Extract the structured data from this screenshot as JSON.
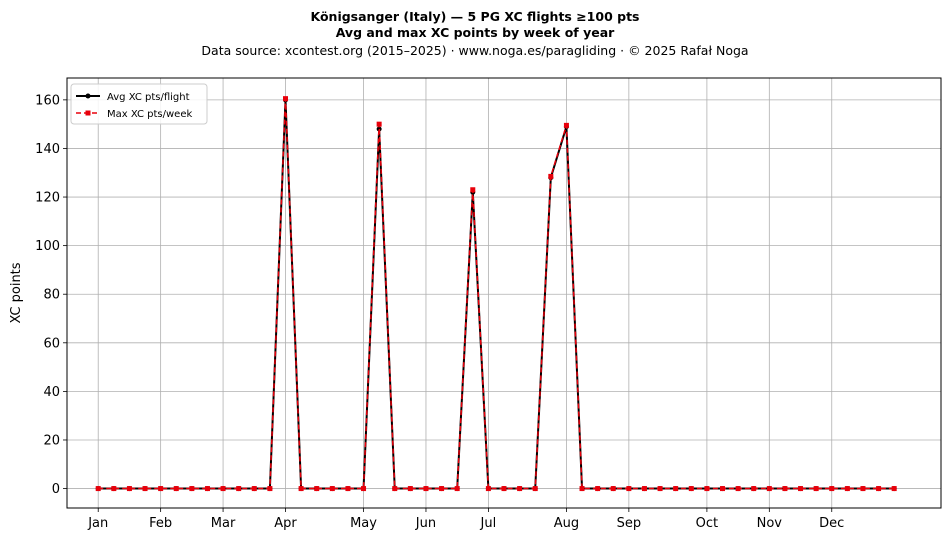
{
  "chart_data": {
    "type": "line",
    "title": "Königsanger (Italy)  —  5 PG XC flights ≥100 pts",
    "subtitle": "Avg and max XC points by week of year",
    "source_note": "Data source: xcontest.org (2015–2025)  ·  www.noga.es/paragliding  ·  © 2025 Rafał Noga",
    "xlabel": "",
    "ylabel": "XC points",
    "ylim": [
      -8,
      169
    ],
    "xlim": [
      -2,
      54
    ],
    "yticks": [
      0,
      20,
      40,
      60,
      80,
      100,
      120,
      140,
      160
    ],
    "grid": true,
    "legend_position": "top-left",
    "x_tick_labels": [
      {
        "x": 0,
        "label": "Jan"
      },
      {
        "x": 4,
        "label": "Feb"
      },
      {
        "x": 8,
        "label": "Mar"
      },
      {
        "x": 12,
        "label": "Apr"
      },
      {
        "x": 17,
        "label": "May"
      },
      {
        "x": 21,
        "label": "Jun"
      },
      {
        "x": 25,
        "label": "Jul"
      },
      {
        "x": 30,
        "label": "Aug"
      },
      {
        "x": 34,
        "label": "Sep"
      },
      {
        "x": 39,
        "label": "Oct"
      },
      {
        "x": 43,
        "label": "Nov"
      },
      {
        "x": 47,
        "label": "Dec"
      }
    ],
    "x": [
      0,
      1,
      2,
      3,
      4,
      5,
      6,
      7,
      8,
      9,
      10,
      11,
      12,
      13,
      14,
      15,
      16,
      17,
      18,
      19,
      20,
      21,
      22,
      23,
      24,
      25,
      26,
      27,
      28,
      29,
      30,
      31,
      32,
      33,
      34,
      35,
      36,
      37,
      38,
      39,
      40,
      41,
      42,
      43,
      44,
      45,
      46,
      47,
      48,
      49,
      50,
      51
    ],
    "series": [
      {
        "name": "Avg XC pts/flight",
        "color": "#000000",
        "style": "solid",
        "marker": "circle",
        "values": [
          0,
          0,
          0,
          0,
          0,
          0,
          0,
          0,
          0,
          0,
          0,
          0,
          160,
          0,
          0,
          0,
          0,
          0,
          148,
          0,
          0,
          0,
          0,
          0,
          122,
          0,
          0,
          0,
          0,
          128,
          149,
          0,
          0,
          0,
          0,
          0,
          0,
          0,
          0,
          0,
          0,
          0,
          0,
          0,
          0,
          0,
          0,
          0,
          0,
          0,
          0,
          0
        ]
      },
      {
        "name": "Max XC pts/week",
        "color": "#e8000b",
        "style": "dashed",
        "marker": "square",
        "values": [
          0,
          0,
          0,
          0,
          0,
          0,
          0,
          0,
          0,
          0,
          0,
          0,
          160.5,
          0,
          0,
          0,
          0,
          0,
          150,
          0,
          0,
          0,
          0,
          0,
          123,
          0,
          0,
          0,
          0,
          128.5,
          149.5,
          0,
          0,
          0,
          0,
          0,
          0,
          0,
          0,
          0,
          0,
          0,
          0,
          0,
          0,
          0,
          0,
          0,
          0,
          0,
          0,
          0
        ]
      }
    ]
  }
}
